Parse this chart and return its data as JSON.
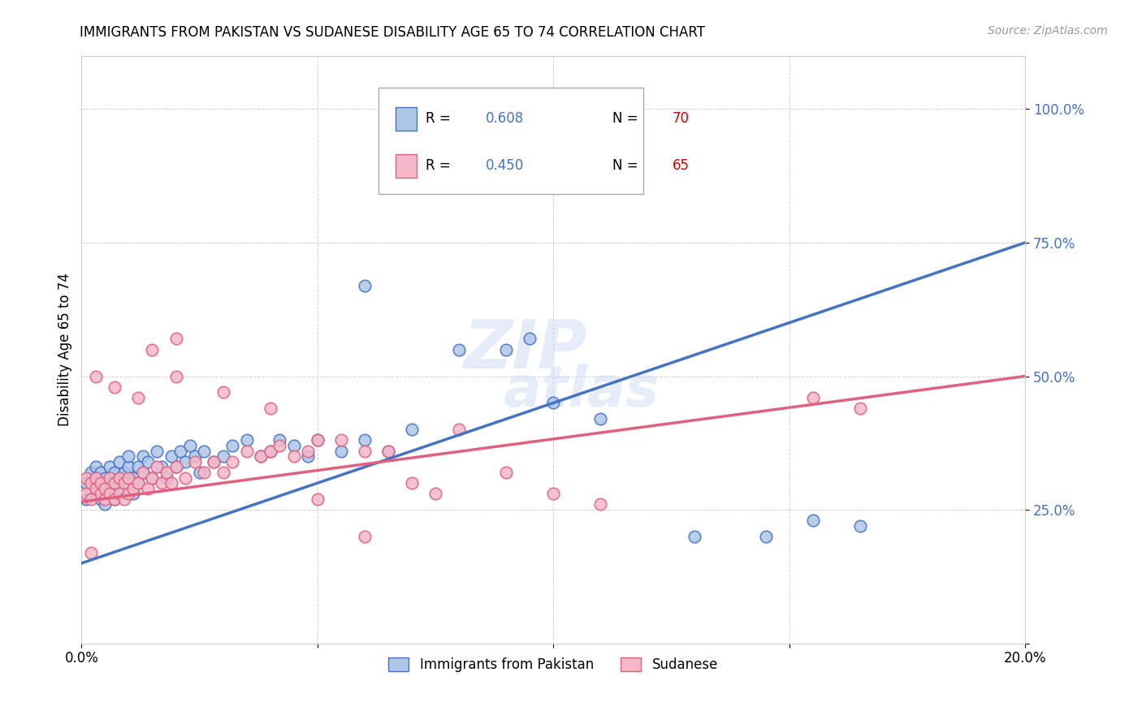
{
  "title": "IMMIGRANTS FROM PAKISTAN VS SUDANESE DISABILITY AGE 65 TO 74 CORRELATION CHART",
  "source": "Source: ZipAtlas.com",
  "ylabel": "Disability Age 65 to 74",
  "pakistan_R": "0.608",
  "pakistan_N": "70",
  "sudanese_R": "0.450",
  "sudanese_N": "65",
  "pakistan_color": "#aec6e8",
  "pakistan_line_color": "#4472c4",
  "sudanese_color": "#f4b8c8",
  "sudanese_line_color": "#e06080",
  "watermark_top": "ZIP",
  "watermark_bottom": "atlas",
  "xmin": 0.0,
  "xmax": 0.2,
  "ymin": 0.0,
  "ymax": 1.1,
  "pk_line_x0": 0.0,
  "pk_line_y0": 0.15,
  "pk_line_x1": 0.2,
  "pk_line_y1": 0.75,
  "su_line_x0": 0.0,
  "su_line_y0": 0.265,
  "su_line_x1": 0.2,
  "su_line_y1": 0.5,
  "pakistan_scatter_x": [
    0.001,
    0.001,
    0.002,
    0.002,
    0.003,
    0.003,
    0.003,
    0.004,
    0.004,
    0.004,
    0.005,
    0.005,
    0.005,
    0.006,
    0.006,
    0.006,
    0.007,
    0.007,
    0.007,
    0.008,
    0.008,
    0.008,
    0.009,
    0.009,
    0.01,
    0.01,
    0.01,
    0.011,
    0.011,
    0.012,
    0.012,
    0.013,
    0.013,
    0.014,
    0.015,
    0.016,
    0.017,
    0.018,
    0.019,
    0.02,
    0.021,
    0.022,
    0.023,
    0.024,
    0.025,
    0.026,
    0.028,
    0.03,
    0.032,
    0.035,
    0.038,
    0.04,
    0.042,
    0.045,
    0.048,
    0.05,
    0.055,
    0.06,
    0.065,
    0.07,
    0.08,
    0.09,
    0.1,
    0.11,
    0.13,
    0.145,
    0.155,
    0.165,
    0.095,
    0.06
  ],
  "pakistan_scatter_y": [
    0.27,
    0.3,
    0.28,
    0.32,
    0.29,
    0.31,
    0.33,
    0.27,
    0.3,
    0.32,
    0.26,
    0.29,
    0.31,
    0.28,
    0.3,
    0.33,
    0.27,
    0.3,
    0.32,
    0.28,
    0.31,
    0.34,
    0.29,
    0.32,
    0.3,
    0.33,
    0.35,
    0.28,
    0.31,
    0.3,
    0.33,
    0.35,
    0.32,
    0.34,
    0.31,
    0.36,
    0.33,
    0.31,
    0.35,
    0.33,
    0.36,
    0.34,
    0.37,
    0.35,
    0.32,
    0.36,
    0.34,
    0.35,
    0.37,
    0.38,
    0.35,
    0.36,
    0.38,
    0.37,
    0.35,
    0.38,
    0.36,
    0.38,
    0.36,
    0.4,
    0.55,
    0.55,
    0.45,
    0.42,
    0.2,
    0.2,
    0.23,
    0.22,
    0.57,
    0.67
  ],
  "sudanese_scatter_x": [
    0.001,
    0.001,
    0.002,
    0.002,
    0.003,
    0.003,
    0.004,
    0.004,
    0.005,
    0.005,
    0.006,
    0.006,
    0.007,
    0.007,
    0.008,
    0.008,
    0.009,
    0.009,
    0.01,
    0.01,
    0.011,
    0.012,
    0.013,
    0.014,
    0.015,
    0.016,
    0.017,
    0.018,
    0.019,
    0.02,
    0.022,
    0.024,
    0.026,
    0.028,
    0.03,
    0.032,
    0.035,
    0.038,
    0.04,
    0.042,
    0.045,
    0.048,
    0.05,
    0.055,
    0.06,
    0.065,
    0.07,
    0.075,
    0.08,
    0.09,
    0.1,
    0.11,
    0.02,
    0.03,
    0.04,
    0.05,
    0.06,
    0.155,
    0.165,
    0.002,
    0.003,
    0.007,
    0.012,
    0.015,
    0.02
  ],
  "sudanese_scatter_y": [
    0.28,
    0.31,
    0.27,
    0.3,
    0.29,
    0.31,
    0.28,
    0.3,
    0.27,
    0.29,
    0.28,
    0.31,
    0.27,
    0.3,
    0.28,
    0.31,
    0.27,
    0.3,
    0.28,
    0.31,
    0.29,
    0.3,
    0.32,
    0.29,
    0.31,
    0.33,
    0.3,
    0.32,
    0.3,
    0.33,
    0.31,
    0.34,
    0.32,
    0.34,
    0.32,
    0.34,
    0.36,
    0.35,
    0.36,
    0.37,
    0.35,
    0.36,
    0.38,
    0.38,
    0.36,
    0.36,
    0.3,
    0.28,
    0.4,
    0.32,
    0.28,
    0.26,
    0.5,
    0.47,
    0.44,
    0.27,
    0.2,
    0.46,
    0.44,
    0.17,
    0.5,
    0.48,
    0.46,
    0.55,
    0.57
  ]
}
